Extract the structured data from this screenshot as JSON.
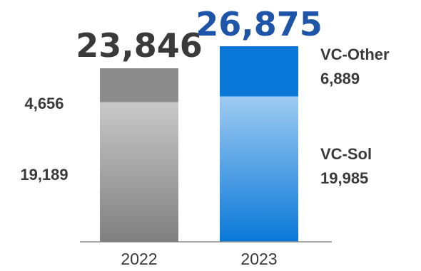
{
  "chart_data": {
    "type": "bar",
    "stacked": true,
    "categories": [
      "2022",
      "2023"
    ],
    "series": [
      {
        "name": "VC-Sol",
        "values": [
          19189,
          19985
        ]
      },
      {
        "name": "VC-Other",
        "values": [
          4656,
          6889
        ]
      }
    ],
    "totals": [
      "23,846",
      "26,875"
    ],
    "segment_labels": {
      "2022": [
        "19,189",
        "4,656"
      ],
      "2023": [
        "19,985",
        "6,889"
      ]
    },
    "legend": "right",
    "title": "",
    "xlabel": "",
    "ylabel": "",
    "grid": false,
    "colors": {
      "2022_sol_top": "#c8c8c8",
      "2022_sol_bottom": "#7f7f7f",
      "2022_other": "#8c8c8c",
      "2023_sol_top": "#9fcbf2",
      "2023_sol_bottom": "#0a78d8",
      "2023_other": "#0a78d8",
      "total_2022": "#3a3a3a",
      "total_2023": "#1e55a8",
      "label": "#3a3a3a",
      "axis": "#8c8c8c"
    }
  }
}
